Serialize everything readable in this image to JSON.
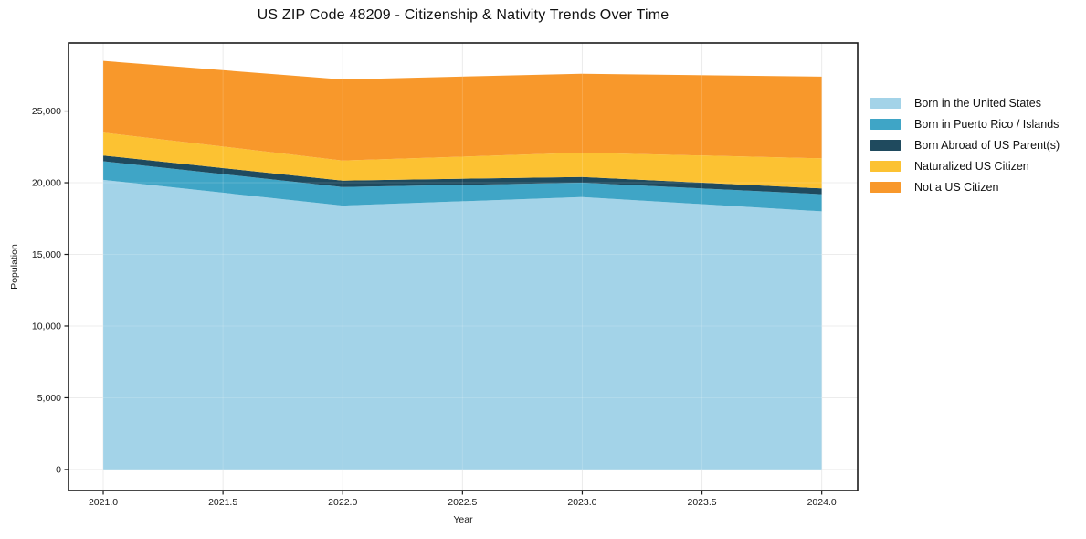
{
  "title": "US ZIP Code 48209 - Citizenship & Nativity Trends Over Time",
  "chart_data": {
    "type": "area",
    "stacked": true,
    "title": "US ZIP Code 48209 - Citizenship & Nativity Trends Over Time",
    "xlabel": "Year",
    "ylabel": "Population",
    "x": [
      2021,
      2022,
      2023,
      2024
    ],
    "series": [
      {
        "name": "Born in the United States",
        "color": "#a3d3e8",
        "values": [
          20200,
          18400,
          19000,
          18000
        ]
      },
      {
        "name": "Born in Puerto Rico / Islands",
        "color": "#3fa5c6",
        "values": [
          1300,
          1300,
          1000,
          1200
        ]
      },
      {
        "name": "Born Abroad of US Parent(s)",
        "color": "#1f4a5e",
        "values": [
          400,
          450,
          400,
          400
        ]
      },
      {
        "name": "Naturalized US Citizen",
        "color": "#fcc232",
        "values": [
          1600,
          1400,
          1700,
          2100
        ]
      },
      {
        "name": "Not a US Citizen",
        "color": "#f8982b",
        "values": [
          5000,
          5650,
          5500,
          5700
        ]
      }
    ],
    "stacked_totals": [
      28500,
      27200,
      27600,
      27400
    ],
    "xticks": [
      2021.0,
      2021.5,
      2022.0,
      2022.5,
      2023.0,
      2023.5,
      2024.0
    ],
    "xtick_labels": [
      "2021.0",
      "2021.5",
      "2022.0",
      "2022.5",
      "2023.0",
      "2023.5",
      "2024.0"
    ],
    "yticks": [
      0,
      5000,
      10000,
      15000,
      20000,
      25000
    ],
    "ytick_labels": [
      "0",
      "5,000",
      "10,000",
      "15,000",
      "20,000",
      "25,000"
    ],
    "xlim": [
      2020.855,
      2024.15
    ],
    "ylim": [
      -1470,
      29750
    ],
    "grid": true,
    "grid_color": "#e9e9e9",
    "frame_color": "#1a1a1a",
    "legend_position": "right of plot, no border"
  }
}
